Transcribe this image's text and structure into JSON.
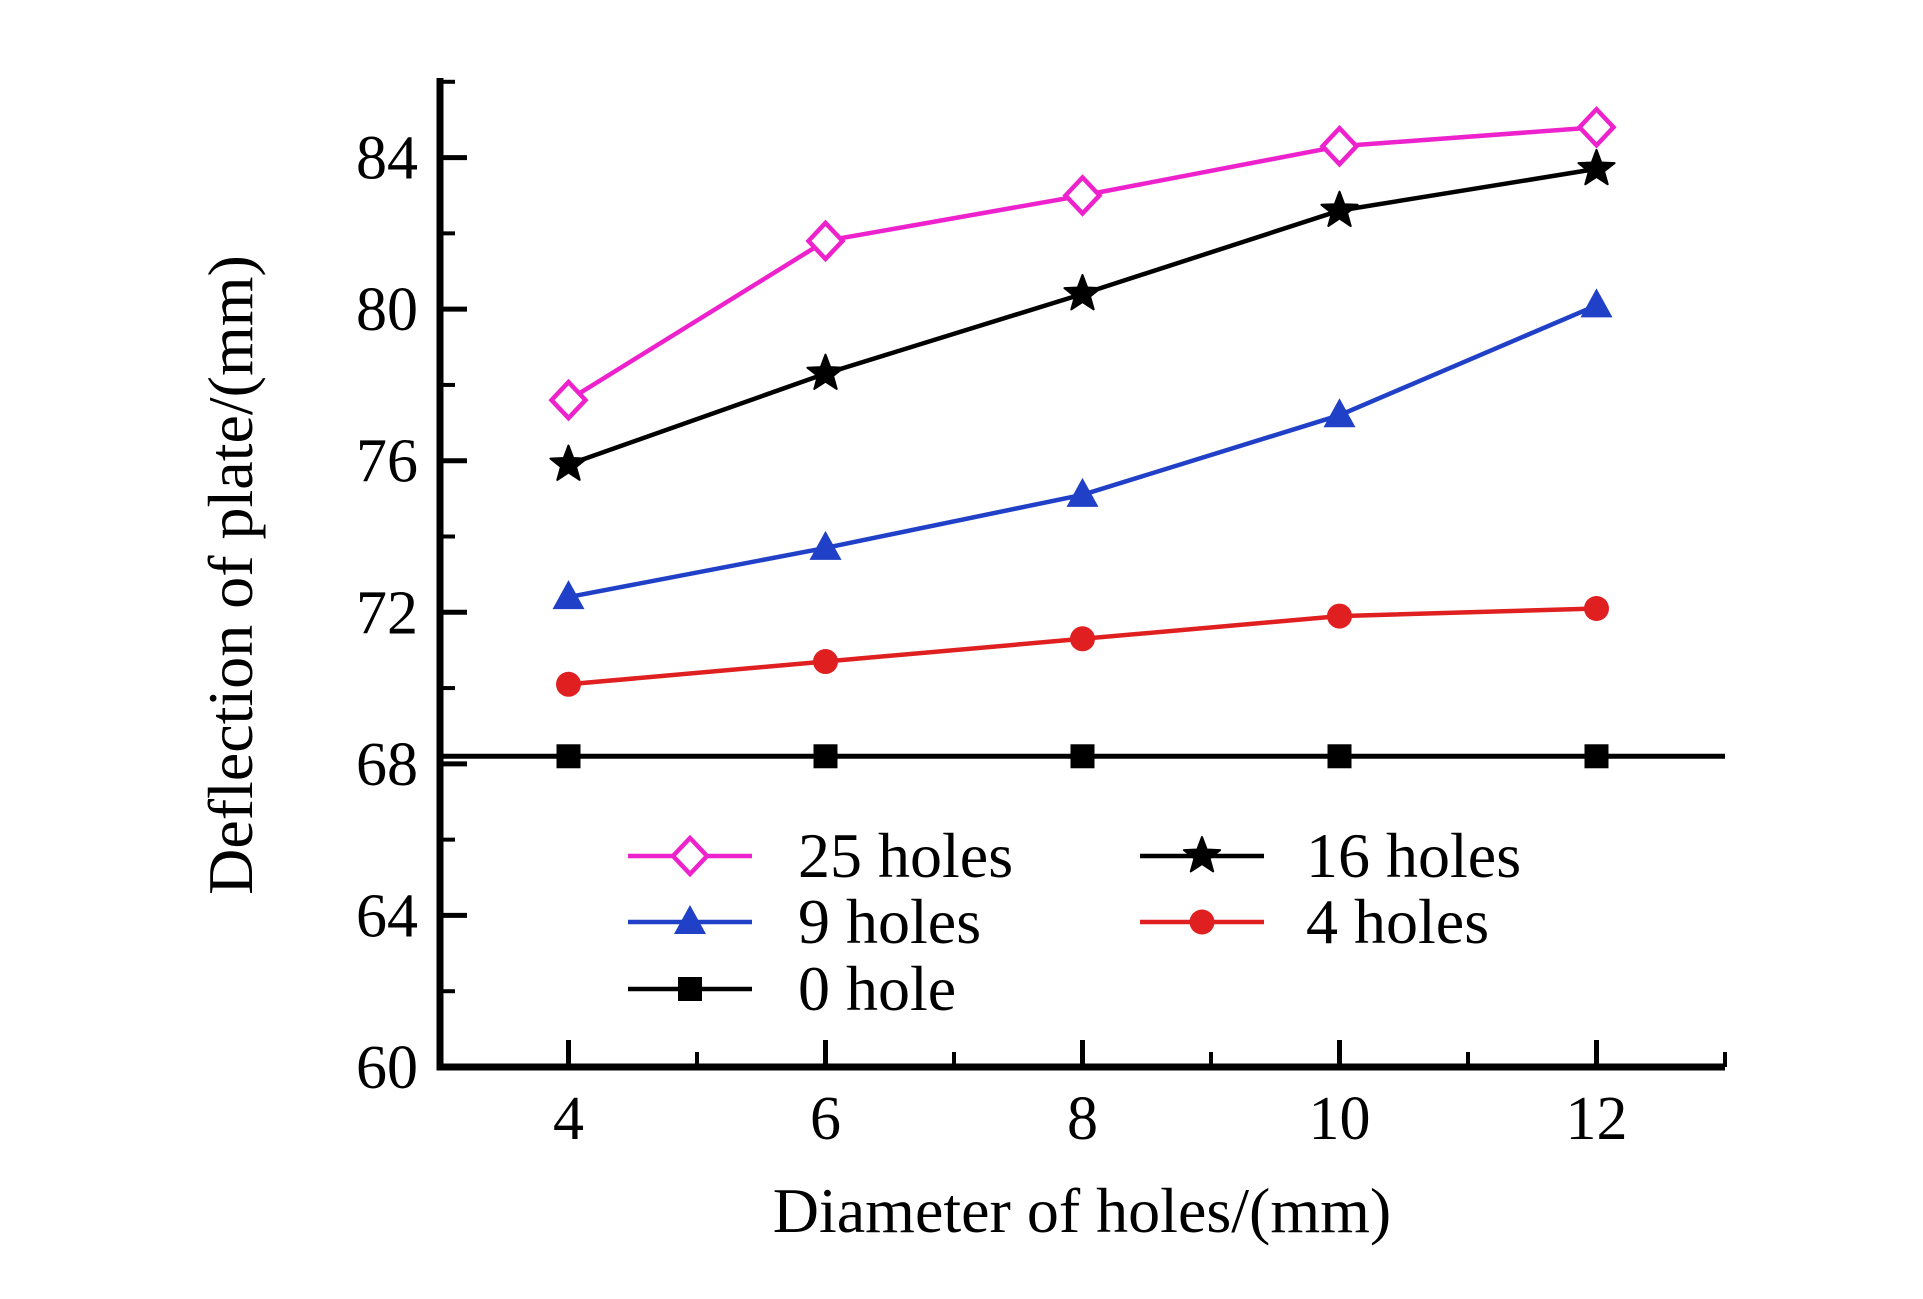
{
  "figure": {
    "background": "#ffffff"
  },
  "chart_data": {
    "type": "line",
    "title": "",
    "xlabel": "Diameter of holes/(mm)",
    "ylabel": "Deflection of plate/(mm)",
    "x": [
      4,
      6,
      8,
      10,
      12
    ],
    "xlim": [
      3,
      13
    ],
    "ylim": [
      60,
      86.1
    ],
    "x_major_ticks": [
      4,
      6,
      8,
      10,
      12
    ],
    "x_minor_ticks": [
      5,
      7,
      9,
      11,
      13
    ],
    "y_major_ticks": [
      60,
      64,
      68,
      72,
      76,
      80,
      84
    ],
    "y_minor_ticks": [
      62,
      66,
      70,
      74,
      78,
      82,
      86
    ],
    "grid": false,
    "axis_color": "#000000",
    "series": [
      {
        "name": "25 holes",
        "color": "#ee22cc",
        "marker": "diamond-open",
        "values": [
          77.6,
          81.8,
          83.0,
          84.3,
          84.8
        ]
      },
      {
        "name": "16 holes",
        "color": "#000000",
        "marker": "star",
        "values": [
          75.9,
          78.3,
          80.4,
          82.6,
          83.7
        ]
      },
      {
        "name": "9 holes",
        "color": "#2040c8",
        "marker": "triangle",
        "values": [
          72.4,
          73.7,
          75.1,
          77.2,
          80.1
        ]
      },
      {
        "name": "4 holes",
        "color": "#e02020",
        "marker": "circle",
        "values": [
          70.1,
          70.7,
          71.3,
          71.9,
          72.1
        ]
      },
      {
        "name": "0 hole",
        "color": "#000000",
        "marker": "square",
        "values": [
          68.2,
          68.2,
          68.2,
          68.2,
          68.2
        ],
        "extend_full_width": true
      }
    ],
    "draw_order": [
      "0 hole",
      "4 holes",
      "9 holes",
      "16 holes",
      "25 holes"
    ],
    "legend": {
      "position": "inside-lower-center",
      "columns": [
        [
          "25 holes",
          "9 holes",
          "0 hole"
        ],
        [
          "16 holes",
          "4 holes"
        ]
      ]
    }
  }
}
